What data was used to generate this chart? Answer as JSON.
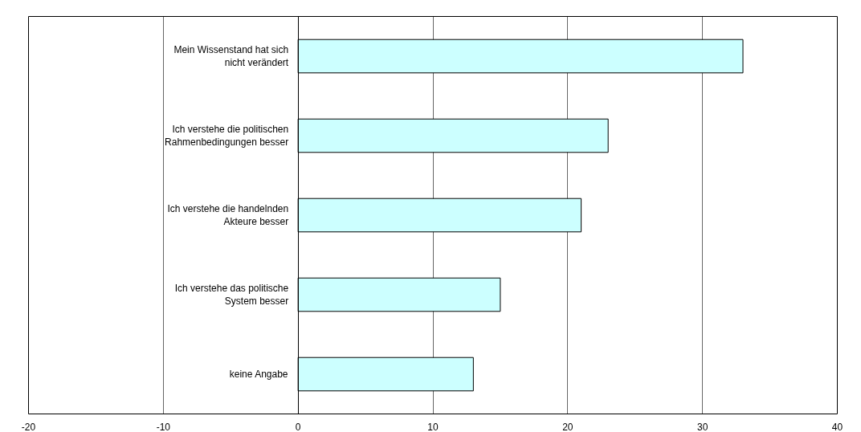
{
  "chart_data": {
    "type": "bar",
    "orientation": "horizontal",
    "categories": [
      "Mein Wissenstand hat sich nicht verändert",
      "Ich verstehe die politischen Rahmenbedingungen besser",
      "Ich verstehe die handelnden Akteure besser",
      "Ich verstehe das politische System besser",
      "keine Angabe"
    ],
    "values": [
      33,
      23,
      21,
      15,
      13
    ],
    "color": "#ccffff",
    "xlim": [
      -20,
      40
    ],
    "xticks": [
      -20,
      -10,
      0,
      10,
      20,
      30,
      40
    ],
    "grid": "x"
  }
}
